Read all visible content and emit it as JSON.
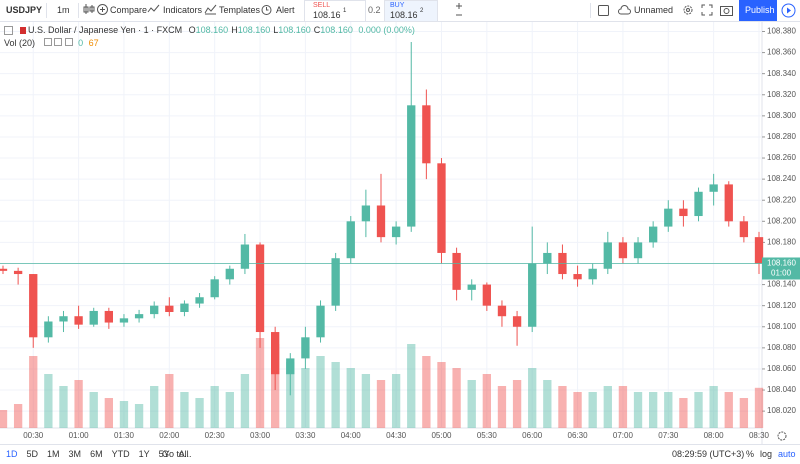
{
  "toolbar": {
    "symbol": "USDJPY",
    "interval": "1m",
    "compare": "Compare",
    "indicators": "Indicators",
    "templates": "Templates",
    "alert": "Alert",
    "sell": {
      "label": "SELL",
      "price": "108.16",
      "pip": "1"
    },
    "spread": "0.2",
    "buy": {
      "label": "BUY",
      "price": "108.16",
      "pip": "2"
    },
    "layout": "Unnamed",
    "publish": "Publish"
  },
  "legend": {
    "title": "U.S. Dollar / Japanese Yen · 1 · FXCM",
    "ohlc": [
      {
        "key": "O",
        "value": "108.160"
      },
      {
        "key": "H",
        "value": "108.160"
      },
      {
        "key": "L",
        "value": "108.160"
      },
      {
        "key": "C",
        "value": "108.160"
      }
    ],
    "change": "0.000 (0.00%)",
    "volume_title": "Vol (20)",
    "volume_ma": "0"
  },
  "chart_data": {
    "type": "candlestick",
    "categories": [
      null,
      null,
      "00:30",
      null,
      null,
      "01:00",
      null,
      null,
      "01:30",
      null,
      null,
      "02:00",
      null,
      null,
      "02:30",
      null,
      null,
      "03:00",
      null,
      null,
      "03:30",
      null,
      null,
      "04:00",
      null,
      null,
      "04:30",
      null,
      null,
      "05:00",
      null,
      null,
      "05:30",
      null,
      null,
      "06:00",
      null,
      null,
      "06:30",
      null,
      null,
      "07:00",
      null,
      null,
      "07:30",
      null,
      null,
      "08:00",
      null,
      null,
      "08:30"
    ],
    "open": [
      108.155,
      108.153,
      108.15,
      108.09,
      108.105,
      108.11,
      108.102,
      108.115,
      108.104,
      108.108,
      108.112,
      108.12,
      108.114,
      108.122,
      108.128,
      108.145,
      108.155,
      108.178,
      108.095,
      108.055,
      108.07,
      108.09,
      108.12,
      108.165,
      108.2,
      108.215,
      108.185,
      108.195,
      108.31,
      108.255,
      108.17,
      108.135,
      108.14,
      108.12,
      108.11,
      108.1,
      108.16,
      108.17,
      108.15,
      108.145,
      108.155,
      108.18,
      108.165,
      108.18,
      108.195,
      108.212,
      108.205,
      108.228,
      108.235,
      108.2,
      108.185
    ],
    "high": [
      108.158,
      108.156,
      108.15,
      108.11,
      108.115,
      108.12,
      108.118,
      108.118,
      108.112,
      108.116,
      108.124,
      108.128,
      108.125,
      108.132,
      108.148,
      108.158,
      108.188,
      108.18,
      108.1,
      108.075,
      108.1,
      108.125,
      108.17,
      108.205,
      108.23,
      108.245,
      108.2,
      108.37,
      108.325,
      108.26,
      108.175,
      108.145,
      108.142,
      108.125,
      108.115,
      108.195,
      108.18,
      108.178,
      108.158,
      108.16,
      108.19,
      108.185,
      108.185,
      108.2,
      108.22,
      108.22,
      108.232,
      108.245,
      108.238,
      108.205,
      108.19
    ],
    "low": [
      108.15,
      108.14,
      108.08,
      108.085,
      108.095,
      108.098,
      108.1,
      108.098,
      108.1,
      108.104,
      108.108,
      108.11,
      108.11,
      108.118,
      108.126,
      108.14,
      108.15,
      108.08,
      108.04,
      108.035,
      108.06,
      108.085,
      108.115,
      108.16,
      108.185,
      108.18,
      108.178,
      108.19,
      108.24,
      108.16,
      108.125,
      108.125,
      108.115,
      108.1,
      108.082,
      108.095,
      108.15,
      108.145,
      108.138,
      108.14,
      108.15,
      108.16,
      108.16,
      108.175,
      108.19,
      108.195,
      108.2,
      108.215,
      108.195,
      108.18,
      108.15
    ],
    "close": [
      108.153,
      108.15,
      108.09,
      108.105,
      108.11,
      108.102,
      108.115,
      108.104,
      108.108,
      108.112,
      108.12,
      108.114,
      108.122,
      108.128,
      108.145,
      108.155,
      108.178,
      108.095,
      108.055,
      108.07,
      108.09,
      108.12,
      108.165,
      108.2,
      108.215,
      108.185,
      108.195,
      108.31,
      108.255,
      108.17,
      108.135,
      108.14,
      108.12,
      108.11,
      108.1,
      108.16,
      108.17,
      108.15,
      108.145,
      108.155,
      108.18,
      108.165,
      108.18,
      108.195,
      108.212,
      108.205,
      108.228,
      108.235,
      108.2,
      108.185,
      108.16
    ],
    "volume": [
      30,
      40,
      120,
      90,
      70,
      80,
      60,
      50,
      45,
      40,
      70,
      90,
      60,
      50,
      70,
      60,
      90,
      150,
      140,
      110,
      100,
      120,
      110,
      100,
      90,
      80,
      90,
      140,
      120,
      110,
      100,
      80,
      90,
      70,
      80,
      100,
      80,
      70,
      60,
      60,
      70,
      70,
      60,
      60,
      60,
      50,
      60,
      70,
      60,
      50,
      67
    ],
    "up_color": "#53b9a5",
    "down_color": "#ef5350",
    "ylim": [
      108.004,
      108.389
    ],
    "yticks": [
      {
        "value": 108.02,
        "label": "108.020"
      },
      {
        "value": 108.04,
        "label": "108.040"
      },
      {
        "value": 108.06,
        "label": "108.060"
      },
      {
        "value": 108.08,
        "label": "108.080"
      },
      {
        "value": 108.1,
        "label": "108.100"
      },
      {
        "value": 108.12,
        "label": "108.120"
      },
      {
        "value": 108.14,
        "label": "108.140"
      },
      {
        "value": 108.16,
        "label": "108.160"
      },
      {
        "value": 108.18,
        "label": "108.180"
      },
      {
        "value": 108.2,
        "label": "108.200"
      },
      {
        "value": 108.22,
        "label": "108.220"
      },
      {
        "value": 108.24,
        "label": "108.240"
      },
      {
        "value": 108.26,
        "label": "108.260"
      },
      {
        "value": 108.28,
        "label": "108.280"
      },
      {
        "value": 108.3,
        "label": "108.300"
      },
      {
        "value": 108.32,
        "label": "108.320"
      },
      {
        "value": 108.34,
        "label": "108.340"
      },
      {
        "value": 108.36,
        "label": "108.360"
      },
      {
        "value": 108.38,
        "label": "108.380"
      }
    ],
    "grid": true,
    "last_price": {
      "value": 108.16,
      "label": "108.160"
    },
    "countdown": "01:00"
  },
  "footer": {
    "ranges": [
      "1D",
      "5D",
      "1M",
      "3M",
      "6M",
      "YTD",
      "1Y",
      "5Y",
      "All"
    ],
    "goto": "Go to...",
    "clock": "08:29:59 (UTC+3)",
    "percent": "%",
    "log": "log",
    "auto": "auto"
  }
}
